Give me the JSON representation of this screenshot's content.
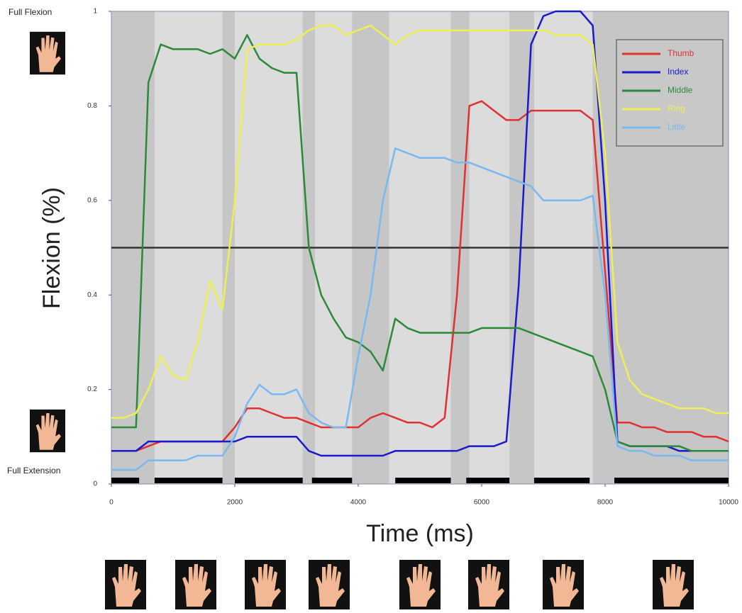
{
  "chart_data": {
    "type": "line",
    "ylabel_top": "Full Flexion",
    "ylabel_bottom": "Full Extension",
    "ylabel": "Flexion (%)",
    "xlabel": "Time (ms)",
    "x": [
      0,
      200,
      400,
      600,
      800,
      1000,
      1200,
      1400,
      1600,
      1800,
      2000,
      2200,
      2400,
      2600,
      2800,
      3000,
      3200,
      3400,
      3600,
      3800,
      4000,
      4200,
      4400,
      4600,
      4800,
      5000,
      5200,
      5400,
      5600,
      5800,
      6000,
      6200,
      6400,
      6600,
      6800,
      7000,
      7200,
      7400,
      7600,
      7800,
      8000,
      8200,
      8400,
      8600,
      8800,
      9000,
      9200,
      9400,
      9600,
      9800,
      10000
    ],
    "series": [
      {
        "name": "Thumb",
        "color": "#e03030",
        "values": [
          0.07,
          0.07,
          0.07,
          0.08,
          0.09,
          0.09,
          0.09,
          0.09,
          0.09,
          0.09,
          0.12,
          0.16,
          0.16,
          0.15,
          0.14,
          0.14,
          0.13,
          0.12,
          0.12,
          0.12,
          0.12,
          0.14,
          0.15,
          0.14,
          0.13,
          0.13,
          0.12,
          0.14,
          0.4,
          0.8,
          0.81,
          0.79,
          0.77,
          0.77,
          0.79,
          0.79,
          0.79,
          0.79,
          0.79,
          0.77,
          0.45,
          0.13,
          0.13,
          0.12,
          0.12,
          0.11,
          0.11,
          0.11,
          0.1,
          0.1,
          0.09
        ]
      },
      {
        "name": "Index",
        "color": "#1a1acc",
        "values": [
          0.07,
          0.07,
          0.07,
          0.09,
          0.09,
          0.09,
          0.09,
          0.09,
          0.09,
          0.09,
          0.09,
          0.1,
          0.1,
          0.1,
          0.1,
          0.1,
          0.07,
          0.06,
          0.06,
          0.06,
          0.06,
          0.06,
          0.06,
          0.07,
          0.07,
          0.07,
          0.07,
          0.07,
          0.07,
          0.08,
          0.08,
          0.08,
          0.09,
          0.42,
          0.93,
          0.99,
          1.0,
          1.0,
          1.0,
          0.97,
          0.6,
          0.09,
          0.08,
          0.08,
          0.08,
          0.08,
          0.07,
          0.07,
          0.07,
          0.07,
          0.07
        ]
      },
      {
        "name": "Middle",
        "color": "#2a8a3a",
        "values": [
          0.12,
          0.12,
          0.12,
          0.85,
          0.93,
          0.92,
          0.92,
          0.92,
          0.91,
          0.92,
          0.9,
          0.95,
          0.9,
          0.88,
          0.87,
          0.87,
          0.5,
          0.4,
          0.35,
          0.31,
          0.3,
          0.28,
          0.24,
          0.35,
          0.33,
          0.32,
          0.32,
          0.32,
          0.32,
          0.32,
          0.33,
          0.33,
          0.33,
          0.33,
          0.32,
          0.31,
          0.3,
          0.29,
          0.28,
          0.27,
          0.2,
          0.09,
          0.08,
          0.08,
          0.08,
          0.08,
          0.08,
          0.07,
          0.07,
          0.07,
          0.07
        ]
      },
      {
        "name": "Ring",
        "color": "#eeee55",
        "values": [
          0.14,
          0.14,
          0.15,
          0.2,
          0.27,
          0.23,
          0.22,
          0.3,
          0.43,
          0.37,
          0.6,
          0.92,
          0.93,
          0.93,
          0.93,
          0.94,
          0.96,
          0.97,
          0.97,
          0.95,
          0.96,
          0.97,
          0.95,
          0.93,
          0.95,
          0.96,
          0.96,
          0.96,
          0.96,
          0.96,
          0.96,
          0.96,
          0.96,
          0.96,
          0.96,
          0.96,
          0.95,
          0.95,
          0.95,
          0.93,
          0.7,
          0.3,
          0.22,
          0.19,
          0.18,
          0.17,
          0.16,
          0.16,
          0.16,
          0.15,
          0.15
        ]
      },
      {
        "name": "Little",
        "color": "#7ab8f0",
        "values": [
          0.03,
          0.03,
          0.03,
          0.05,
          0.05,
          0.05,
          0.05,
          0.06,
          0.06,
          0.06,
          0.1,
          0.17,
          0.21,
          0.19,
          0.19,
          0.2,
          0.15,
          0.13,
          0.12,
          0.12,
          0.27,
          0.4,
          0.6,
          0.71,
          0.7,
          0.69,
          0.69,
          0.69,
          0.68,
          0.68,
          0.67,
          0.66,
          0.65,
          0.64,
          0.63,
          0.6,
          0.6,
          0.6,
          0.6,
          0.61,
          0.4,
          0.08,
          0.07,
          0.07,
          0.06,
          0.06,
          0.06,
          0.05,
          0.05,
          0.05,
          0.05
        ]
      }
    ],
    "reference_line": 0.5,
    "shaded_intervals": [
      [
        0,
        700
      ],
      [
        1800,
        2000
      ],
      [
        3100,
        3300
      ],
      [
        3900,
        4500
      ],
      [
        5500,
        5800
      ],
      [
        6450,
        6850
      ],
      [
        7800,
        10000
      ]
    ],
    "gesture_bars": [
      [
        0,
        450
      ],
      [
        700,
        1800
      ],
      [
        2000,
        3100
      ],
      [
        3250,
        3900
      ],
      [
        4600,
        5500
      ],
      [
        5750,
        6450
      ],
      [
        6850,
        7750
      ],
      [
        8150,
        10000
      ]
    ],
    "xlim": [
      0,
      10000
    ],
    "xticks": [
      0,
      2000,
      4000,
      6000,
      8000,
      10000
    ],
    "ylim": [
      0,
      1
    ],
    "yticks": [
      0,
      0.2,
      0.4,
      0.6,
      0.8,
      1
    ],
    "legend": "upper right"
  }
}
